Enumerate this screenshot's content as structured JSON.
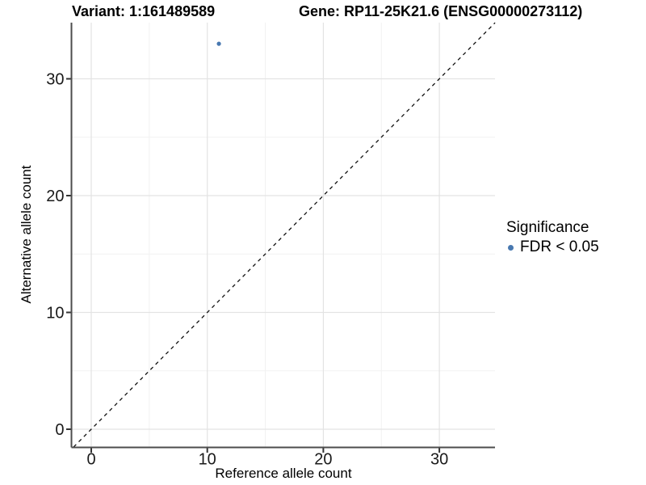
{
  "chart_data": {
    "type": "scatter",
    "titles": {
      "left": "Variant: 1:161489589",
      "right": "Gene: RP11-25K21.6 (ENSG00000273112)"
    },
    "xlabel": "Reference allele count",
    "ylabel": "Alternative allele count",
    "x_ticks": [
      0,
      10,
      20,
      30
    ],
    "y_ticks": [
      0,
      10,
      20,
      30
    ],
    "xlim": [
      -1.7,
      34.8
    ],
    "ylim": [
      -1.52,
      34.9
    ],
    "grid": {
      "major_step": 10,
      "minor_step": 5,
      "grid_on": true
    },
    "points": [
      {
        "x": 11,
        "y": 33,
        "series": "FDR < 0.05"
      }
    ],
    "reference_line": {
      "kind": "identity y = x",
      "style": "dashed"
    },
    "legend": {
      "position": "right",
      "title": "Significance",
      "items": [
        {
          "label": "FDR < 0.05",
          "color": "#4878b0"
        }
      ]
    },
    "colors": {
      "point": "#4878b0",
      "grid_major": "#e3e3e3",
      "grid_minor": "#f2f2f2",
      "axis_line": "#4d4d4d",
      "tick_mark": "#333333",
      "tick_text": "#1a1a1a",
      "reference_line": "#111111",
      "background": "#ffffff"
    }
  }
}
